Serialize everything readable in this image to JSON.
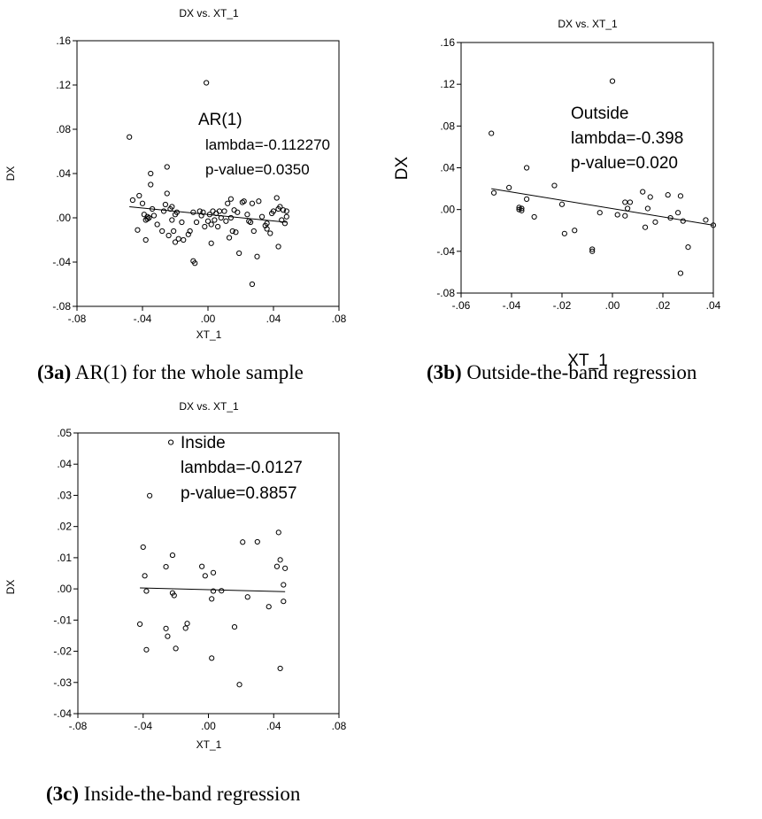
{
  "chart_data": [
    {
      "type": "scatter",
      "panel": "3a",
      "title": "DX vs. XT_1",
      "xlabel": "XT_1",
      "ylabel": "DX",
      "xlim": [
        -0.08,
        0.08
      ],
      "ylim": [
        -0.08,
        0.16
      ],
      "xticks": [
        "-.08",
        "-.04",
        ".00",
        ".04",
        ".08"
      ],
      "yticks": [
        "-.08",
        "-.04",
        ".00",
        ".04",
        ".08",
        ".12",
        ".16"
      ],
      "grid": false,
      "legend": "none",
      "annotation": [
        "AR(1)",
        "lambda=-0.112270",
        "p-value=0.0350"
      ],
      "caption": {
        "label": "(3a)",
        "text": " AR(1) for the whole sample"
      },
      "fit_line": {
        "x": [
          -0.048,
          0.048
        ],
        "y": [
          0.01,
          -0.004
        ]
      },
      "points": [
        [
          -0.048,
          0.073
        ],
        [
          -0.046,
          0.016
        ],
        [
          -0.043,
          -0.011
        ],
        [
          -0.042,
          0.02
        ],
        [
          -0.04,
          0.013
        ],
        [
          -0.039,
          0.003
        ],
        [
          -0.038,
          -0.002
        ],
        [
          -0.037,
          -0.001
        ],
        [
          -0.037,
          0.001
        ],
        [
          -0.036,
          0.0
        ],
        [
          -0.038,
          -0.02
        ],
        [
          -0.035,
          0.04
        ],
        [
          -0.035,
          0.03
        ],
        [
          -0.034,
          0.008
        ],
        [
          -0.033,
          0.002
        ],
        [
          -0.031,
          -0.006
        ],
        [
          -0.028,
          -0.012
        ],
        [
          -0.027,
          0.006
        ],
        [
          -0.026,
          0.012
        ],
        [
          -0.025,
          0.022
        ],
        [
          -0.025,
          0.046
        ],
        [
          -0.024,
          -0.016
        ],
        [
          -0.023,
          0.008
        ],
        [
          -0.022,
          -0.002
        ],
        [
          -0.022,
          0.01
        ],
        [
          -0.021,
          -0.012
        ],
        [
          -0.02,
          -0.022
        ],
        [
          -0.02,
          0.003
        ],
        [
          -0.019,
          0.005
        ],
        [
          -0.018,
          -0.019
        ],
        [
          -0.016,
          -0.004
        ],
        [
          -0.015,
          -0.02
        ],
        [
          -0.012,
          -0.015
        ],
        [
          -0.011,
          -0.012
        ],
        [
          -0.009,
          0.005
        ],
        [
          -0.009,
          -0.039
        ],
        [
          -0.008,
          -0.041
        ],
        [
          -0.007,
          -0.004
        ],
        [
          -0.005,
          0.006
        ],
        [
          -0.004,
          0.002
        ],
        [
          -0.003,
          0.005
        ],
        [
          -0.002,
          -0.008
        ],
        [
          -0.001,
          0.122
        ],
        [
          0.0,
          -0.003
        ],
        [
          0.001,
          0.003
        ],
        [
          0.002,
          -0.023
        ],
        [
          0.002,
          -0.006
        ],
        [
          0.003,
          0.006
        ],
        [
          0.004,
          -0.002
        ],
        [
          0.005,
          0.004
        ],
        [
          0.006,
          -0.008
        ],
        [
          0.007,
          0.006
        ],
        [
          0.008,
          0.0
        ],
        [
          0.01,
          0.006
        ],
        [
          0.011,
          -0.003
        ],
        [
          0.012,
          0.013
        ],
        [
          0.013,
          -0.018
        ],
        [
          0.014,
          0.017
        ],
        [
          0.014,
          0.0
        ],
        [
          0.015,
          -0.012
        ],
        [
          0.016,
          0.007
        ],
        [
          0.017,
          -0.013
        ],
        [
          0.018,
          0.005
        ],
        [
          0.019,
          -0.032
        ],
        [
          0.021,
          0.014
        ],
        [
          0.022,
          0.015
        ],
        [
          0.024,
          0.003
        ],
        [
          0.025,
          -0.003
        ],
        [
          0.026,
          -0.004
        ],
        [
          0.027,
          0.013
        ],
        [
          0.027,
          -0.06
        ],
        [
          0.028,
          -0.012
        ],
        [
          0.03,
          -0.035
        ],
        [
          0.031,
          0.015
        ],
        [
          0.033,
          0.001
        ],
        [
          0.035,
          -0.007
        ],
        [
          0.036,
          -0.005
        ],
        [
          0.036,
          -0.01
        ],
        [
          0.038,
          -0.014
        ],
        [
          0.039,
          0.004
        ],
        [
          0.04,
          0.006
        ],
        [
          0.042,
          0.018
        ],
        [
          0.043,
          0.008
        ],
        [
          0.043,
          -0.026
        ],
        [
          0.044,
          0.01
        ],
        [
          0.045,
          -0.002
        ],
        [
          0.046,
          0.007
        ],
        [
          0.047,
          -0.005
        ],
        [
          0.048,
          0.006
        ],
        [
          0.048,
          0.001
        ]
      ]
    },
    {
      "type": "scatter",
      "panel": "3b",
      "title": "DX vs. XT_1",
      "xlabel": "XT_1",
      "ylabel": "DX",
      "xlim": [
        -0.06,
        0.04
      ],
      "ylim": [
        -0.08,
        0.16
      ],
      "xticks": [
        "-.06",
        "-.04",
        "-.02",
        ".00",
        ".02",
        ".04"
      ],
      "yticks": [
        "-.08",
        "-.04",
        ".00",
        ".04",
        ".08",
        ".12",
        ".16"
      ],
      "grid": false,
      "legend": "none",
      "annotation": [
        "Outside",
        "lambda=-0.398",
        "p-value=0.020"
      ],
      "caption": {
        "label": "(3b)",
        "text": " Outside-the-band regression"
      },
      "fit_line": {
        "x": [
          -0.048,
          0.04
        ],
        "y": [
          0.02,
          -0.015
        ]
      },
      "points": [
        [
          -0.048,
          0.073
        ],
        [
          -0.047,
          0.016
        ],
        [
          -0.041,
          0.021
        ],
        [
          -0.037,
          0.002
        ],
        [
          -0.037,
          0.0
        ],
        [
          -0.036,
          0.001
        ],
        [
          -0.036,
          -0.001
        ],
        [
          -0.034,
          0.04
        ],
        [
          -0.034,
          0.01
        ],
        [
          -0.031,
          -0.007
        ],
        [
          -0.023,
          0.023
        ],
        [
          -0.02,
          0.005
        ],
        [
          -0.019,
          -0.023
        ],
        [
          -0.015,
          -0.02
        ],
        [
          -0.008,
          -0.038
        ],
        [
          -0.008,
          -0.04
        ],
        [
          -0.005,
          -0.003
        ],
        [
          0.0,
          0.123
        ],
        [
          0.002,
          -0.005
        ],
        [
          0.005,
          -0.006
        ],
        [
          0.005,
          0.007
        ],
        [
          0.006,
          0.001
        ],
        [
          0.007,
          0.007
        ],
        [
          0.012,
          0.017
        ],
        [
          0.013,
          -0.017
        ],
        [
          0.014,
          0.001
        ],
        [
          0.015,
          0.012
        ],
        [
          0.017,
          -0.012
        ],
        [
          0.022,
          0.014
        ],
        [
          0.023,
          -0.008
        ],
        [
          0.026,
          -0.003
        ],
        [
          0.027,
          0.013
        ],
        [
          0.027,
          -0.061
        ],
        [
          0.028,
          -0.011
        ],
        [
          0.03,
          -0.036
        ],
        [
          0.037,
          -0.01
        ],
        [
          0.04,
          -0.015
        ]
      ]
    },
    {
      "type": "scatter",
      "panel": "3c",
      "title": "DX vs. XT_1",
      "xlabel": "XT_1",
      "ylabel": "DX",
      "xlim": [
        -0.08,
        0.08
      ],
      "ylim": [
        -0.04,
        0.05
      ],
      "xticks": [
        "-.08",
        "-.04",
        ".00",
        ".04",
        ".08"
      ],
      "yticks": [
        "-.04",
        "-.03",
        "-.02",
        "-.01",
        ".00",
        ".01",
        ".02",
        ".03",
        ".04",
        ".05"
      ],
      "grid": false,
      "legend": "none",
      "annotation": [
        "Inside",
        "lambda=-0.0127",
        "p-value=0.8857"
      ],
      "caption": {
        "label": "(3c)",
        "text": " Inside-the-band regression"
      },
      "fit_line": {
        "x": [
          -0.042,
          0.047
        ],
        "y": [
          0.0003,
          -0.0009
        ]
      },
      "points": [
        [
          -0.042,
          -0.0113
        ],
        [
          -0.04,
          0.0134
        ],
        [
          -0.039,
          0.0042
        ],
        [
          -0.038,
          -0.0007
        ],
        [
          -0.038,
          -0.0195
        ],
        [
          -0.036,
          0.0299
        ],
        [
          -0.026,
          -0.0127
        ],
        [
          -0.026,
          0.0071
        ],
        [
          -0.025,
          -0.0152
        ],
        [
          -0.023,
          0.047
        ],
        [
          -0.022,
          -0.0013
        ],
        [
          -0.022,
          0.0108
        ],
        [
          -0.021,
          -0.0021
        ],
        [
          -0.02,
          -0.0191
        ],
        [
          -0.014,
          -0.0126
        ],
        [
          -0.013,
          -0.0111
        ],
        [
          -0.004,
          0.0072
        ],
        [
          -0.002,
          0.0042
        ],
        [
          0.002,
          -0.0032
        ],
        [
          0.002,
          -0.0222
        ],
        [
          0.003,
          -0.0007
        ],
        [
          0.003,
          0.0052
        ],
        [
          0.008,
          -0.0006
        ],
        [
          0.016,
          -0.0122
        ],
        [
          0.019,
          -0.0307
        ],
        [
          0.021,
          0.015
        ],
        [
          0.024,
          -0.0026
        ],
        [
          0.03,
          0.0151
        ],
        [
          0.037,
          -0.0057
        ],
        [
          0.042,
          0.0072
        ],
        [
          0.043,
          0.0181
        ],
        [
          0.044,
          0.0093
        ],
        [
          0.044,
          -0.0255
        ],
        [
          0.046,
          0.0013
        ],
        [
          0.046,
          -0.004
        ],
        [
          0.047,
          0.0066
        ]
      ]
    }
  ]
}
